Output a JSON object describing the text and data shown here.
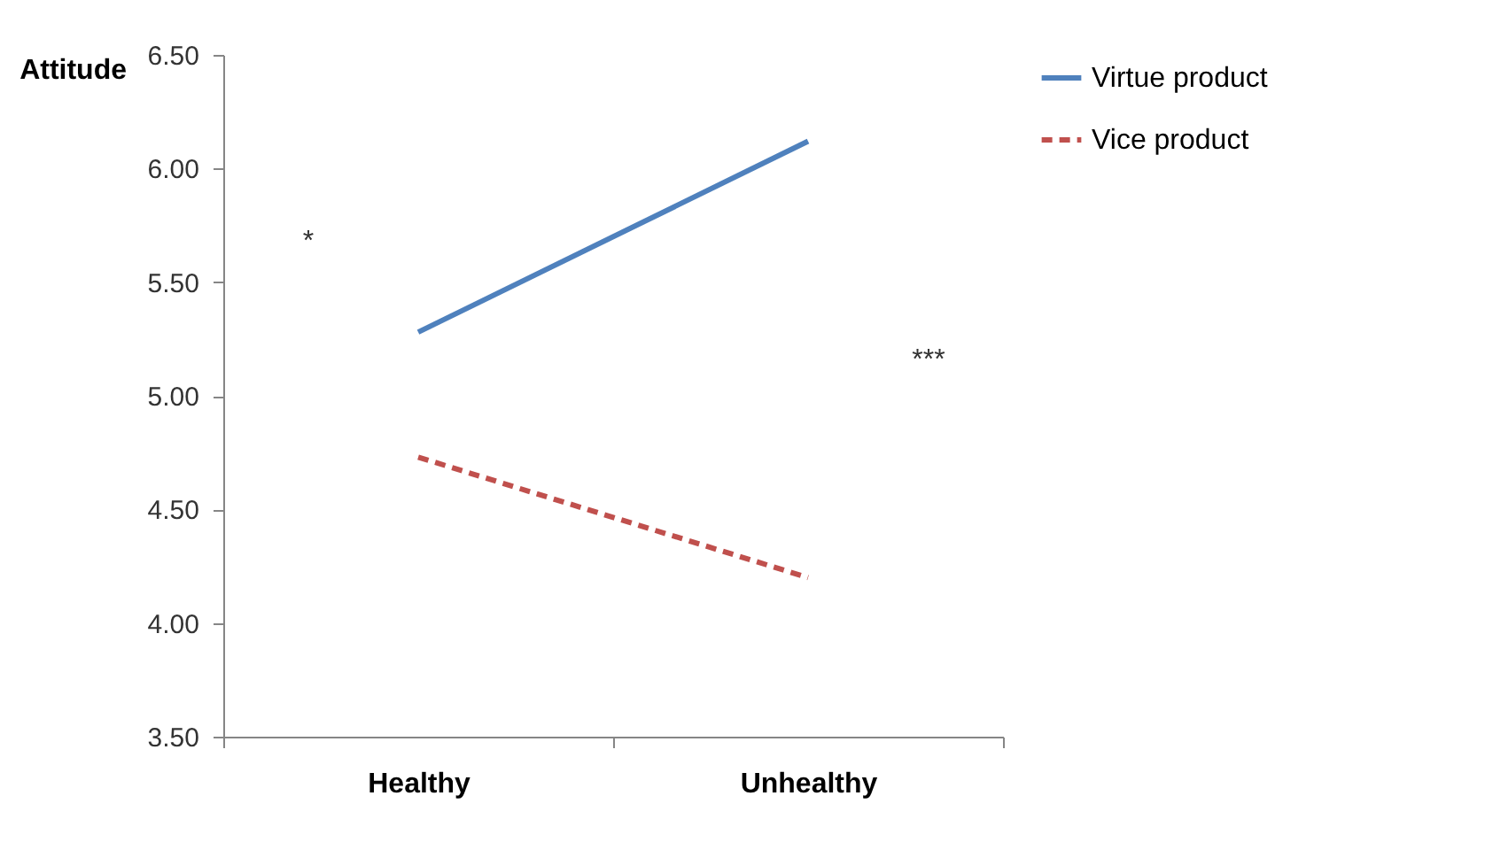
{
  "chart_data": {
    "type": "line",
    "ylabel": "Attitude",
    "categories": [
      "Healthy",
      "Unhealthy"
    ],
    "series": [
      {
        "name": "Virtue product",
        "color": "#4f81bd",
        "line_style": "solid",
        "values": [
          5.28,
          6.12
        ]
      },
      {
        "name": "Vice product",
        "color": "#c0504d",
        "line_style": "dashed",
        "values": [
          4.73,
          4.2
        ]
      }
    ],
    "ylim": [
      3.5,
      6.5
    ],
    "yticks": [
      {
        "value": 3.5,
        "label": "3.50"
      },
      {
        "value": 4,
        "label": "4.00"
      },
      {
        "value": 4.5,
        "label": "4.50"
      },
      {
        "value": 5,
        "label": "5.00"
      },
      {
        "value": 5.5,
        "label": "5.50"
      },
      {
        "value": 6,
        "label": "6.00"
      },
      {
        "value": 6.5,
        "label": "6.50"
      }
    ],
    "grid": false,
    "legend": "right",
    "marker": "none",
    "annotations": [
      "*",
      "***"
    ]
  }
}
